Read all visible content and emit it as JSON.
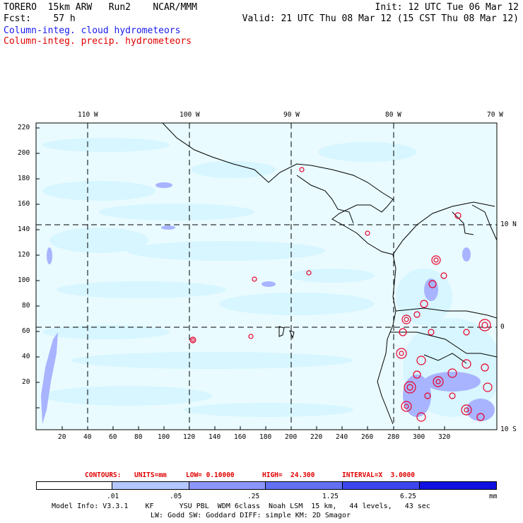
{
  "header": {
    "line1_left": "TORERO  15km ARW   Run2    NCAR/MMM",
    "line1_right": "Init: 12 UTC Tue 06 Mar 12",
    "line2_left": "Fcst:    57 h",
    "line2_right": "Valid: 21 UTC Thu 08 Mar 12 (15 CST Thu 08 Mar 12)",
    "legend_cloud": "Column-integ. cloud hydrometeors",
    "legend_precip": "Column-integ. precip. hydrometeors"
  },
  "colors": {
    "cloud_text": "#1a1aee",
    "precip_text": "#e00000",
    "cloud_light": "#d7f6ff",
    "cloud_mid": "#a8b4ff",
    "cloud_dark": "#6f7cf2",
    "precip_contour": "#e8002a"
  },
  "map": {
    "lon_labels": [
      "110 W",
      "100 W",
      "90 W",
      "80 W",
      "70 W"
    ],
    "lat_labels": [
      "10 N",
      "0",
      "10 S"
    ],
    "y_ticks": [
      "220",
      "200",
      "180",
      "160",
      "140",
      "120",
      "100",
      "80",
      "60",
      "40",
      "20"
    ],
    "x_ticks": [
      "20",
      "40",
      "60",
      "80",
      "100",
      "120",
      "140",
      "160",
      "180",
      "200",
      "220",
      "240",
      "260",
      "280",
      "300",
      "320"
    ]
  },
  "contour_info": {
    "label": "CONTOURS:",
    "units": "UNITS=mm",
    "low": "LOW= 0.10000",
    "high": "HIGH=  24.300",
    "interval": "INTERVAL=X  3.0000"
  },
  "colorbar": {
    "levels": [
      ".01",
      ".05",
      ".25",
      "1.25",
      "6.25"
    ],
    "unit": "mm",
    "colors": [
      "#ffffff",
      "#d7f6ff",
      "#b4c8ff",
      "#8c96fa",
      "#6270f2",
      "#3c46ec",
      "#1010e0"
    ]
  },
  "footer": {
    "line1": "Model Info: V3.3.1    KF      YSU PBL  WDM 6class  Noah LSM  15 km,   44 levels,   43 sec",
    "line2": "LW: Godd SW: Goddard DIFF: simple KM: 2D Smagor"
  }
}
